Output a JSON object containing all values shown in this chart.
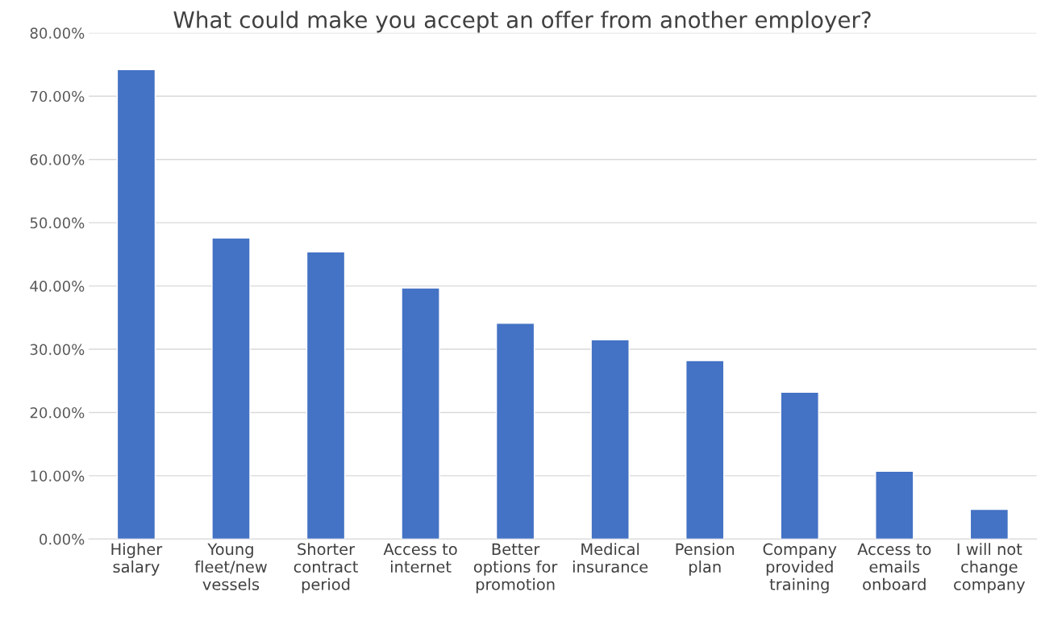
{
  "chart_data": {
    "type": "bar",
    "title": "What could make you accept an offer from another employer?",
    "categories": [
      "Higher\nsalary",
      "Young\nfleet/new\nvessels",
      "Shorter\ncontract\nperiod",
      "Access to\ninternet",
      "Better\noptions for\npromotion",
      "Medical\ninsurance",
      "Pension\nplan",
      "Company\nprovided\ntraining",
      "Access to\nemails\nonboard",
      "I will not\nchange\ncompany"
    ],
    "values": [
      74.2,
      47.6,
      45.4,
      39.7,
      34.1,
      31.5,
      28.2,
      23.2,
      10.7,
      4.7
    ],
    "color": "#4472c4",
    "ylim": [
      0,
      80
    ],
    "yticks": [
      {
        "value": 0,
        "label": "0.00%"
      },
      {
        "value": 10,
        "label": "10.00%"
      },
      {
        "value": 20,
        "label": "20.00%"
      },
      {
        "value": 30,
        "label": "30.00%"
      },
      {
        "value": 40,
        "label": "40.00%"
      },
      {
        "value": 50,
        "label": "50.00%"
      },
      {
        "value": 60,
        "label": "60.00%"
      },
      {
        "value": 70,
        "label": "70.00%"
      },
      {
        "value": 80,
        "label": "80.00%"
      }
    ],
    "grid": "y"
  }
}
